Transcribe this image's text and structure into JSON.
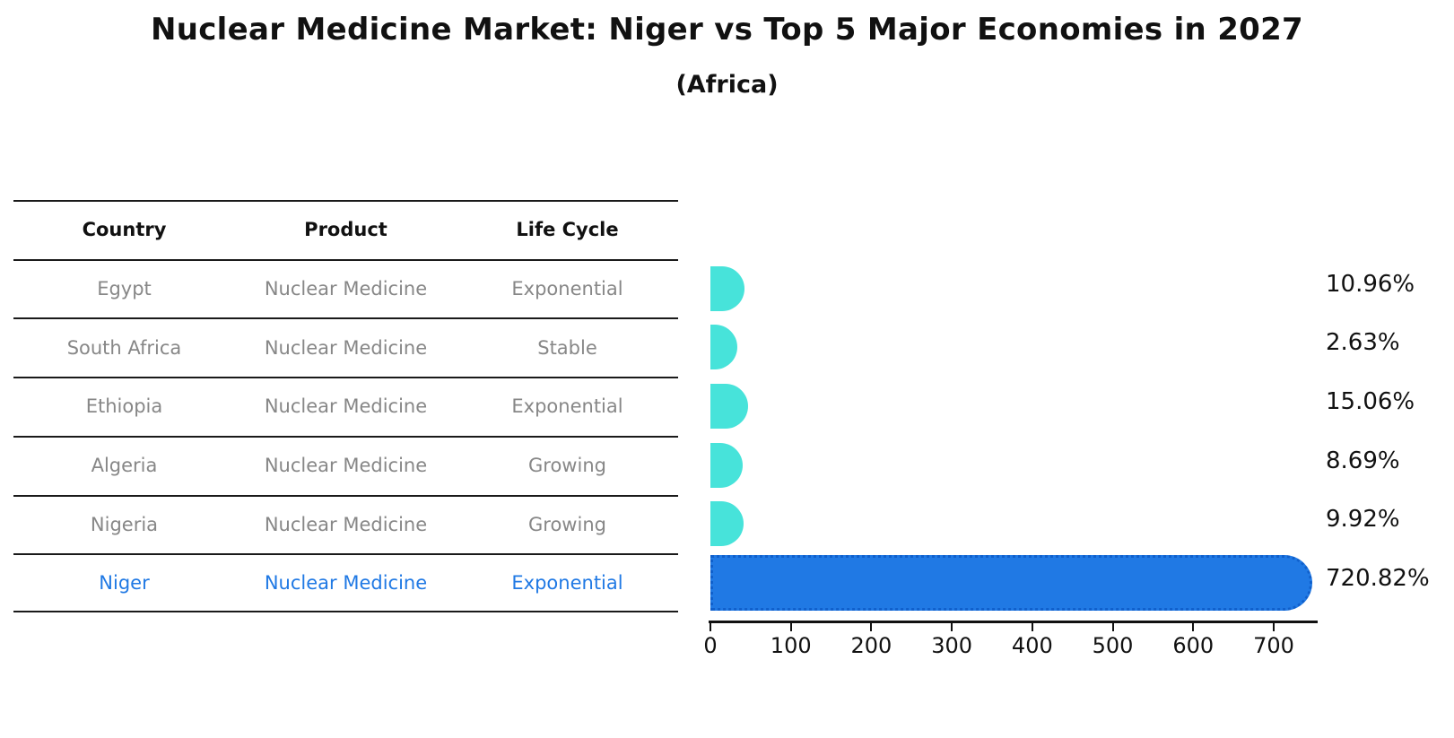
{
  "chart_data": {
    "type": "bar",
    "orientation": "horizontal",
    "title": "Nuclear Medicine Market: Niger vs Top 5 Major Economies in 2027",
    "subtitle": "(Africa)",
    "categories": [
      "Egypt",
      "South Africa",
      "Ethiopia",
      "Algeria",
      "Nigeria",
      "Niger"
    ],
    "values": [
      10.96,
      2.63,
      15.06,
      8.69,
      9.92,
      720.82
    ],
    "value_labels": [
      "10.96%",
      "2.63%",
      "15.06%",
      "8.69%",
      "9.92%",
      "720.82%"
    ],
    "highlight_index": 5,
    "xlabel": "",
    "ylabel": "",
    "xlim": [
      0,
      750
    ],
    "x_ticks": [
      0,
      100,
      200,
      300,
      400,
      500,
      600,
      700
    ],
    "x_tick_labels": [
      "0",
      "100",
      "200",
      "300",
      "400",
      "500",
      "600",
      "700"
    ],
    "grid": false,
    "legend": "none",
    "colors": {
      "bar_default": "#47e3da",
      "bar_highlight": "#2079e4",
      "bar_highlight_border": "#1060cc",
      "axis": "#111111",
      "value_label": "#111111"
    }
  },
  "table": {
    "columns": [
      "Country",
      "Product",
      "Life Cycle"
    ],
    "rows": [
      {
        "country": "Egypt",
        "product": "Nuclear Medicine",
        "life_cycle": "Exponential"
      },
      {
        "country": "South Africa",
        "product": "Nuclear Medicine",
        "life_cycle": "Stable"
      },
      {
        "country": "Ethiopia",
        "product": "Nuclear Medicine",
        "life_cycle": "Exponential"
      },
      {
        "country": "Algeria",
        "product": "Nuclear Medicine",
        "life_cycle": "Growing"
      },
      {
        "country": "Nigeria",
        "product": "Nuclear Medicine",
        "life_cycle": "Growing"
      },
      {
        "country": "Niger",
        "product": "Nuclear Medicine",
        "life_cycle": "Exponential"
      }
    ],
    "highlight_row": "Niger",
    "colors": {
      "header_text": "#111111",
      "row_text": "#878787",
      "highlight_text": "#2079e4",
      "line": "#1a1a1a"
    }
  }
}
